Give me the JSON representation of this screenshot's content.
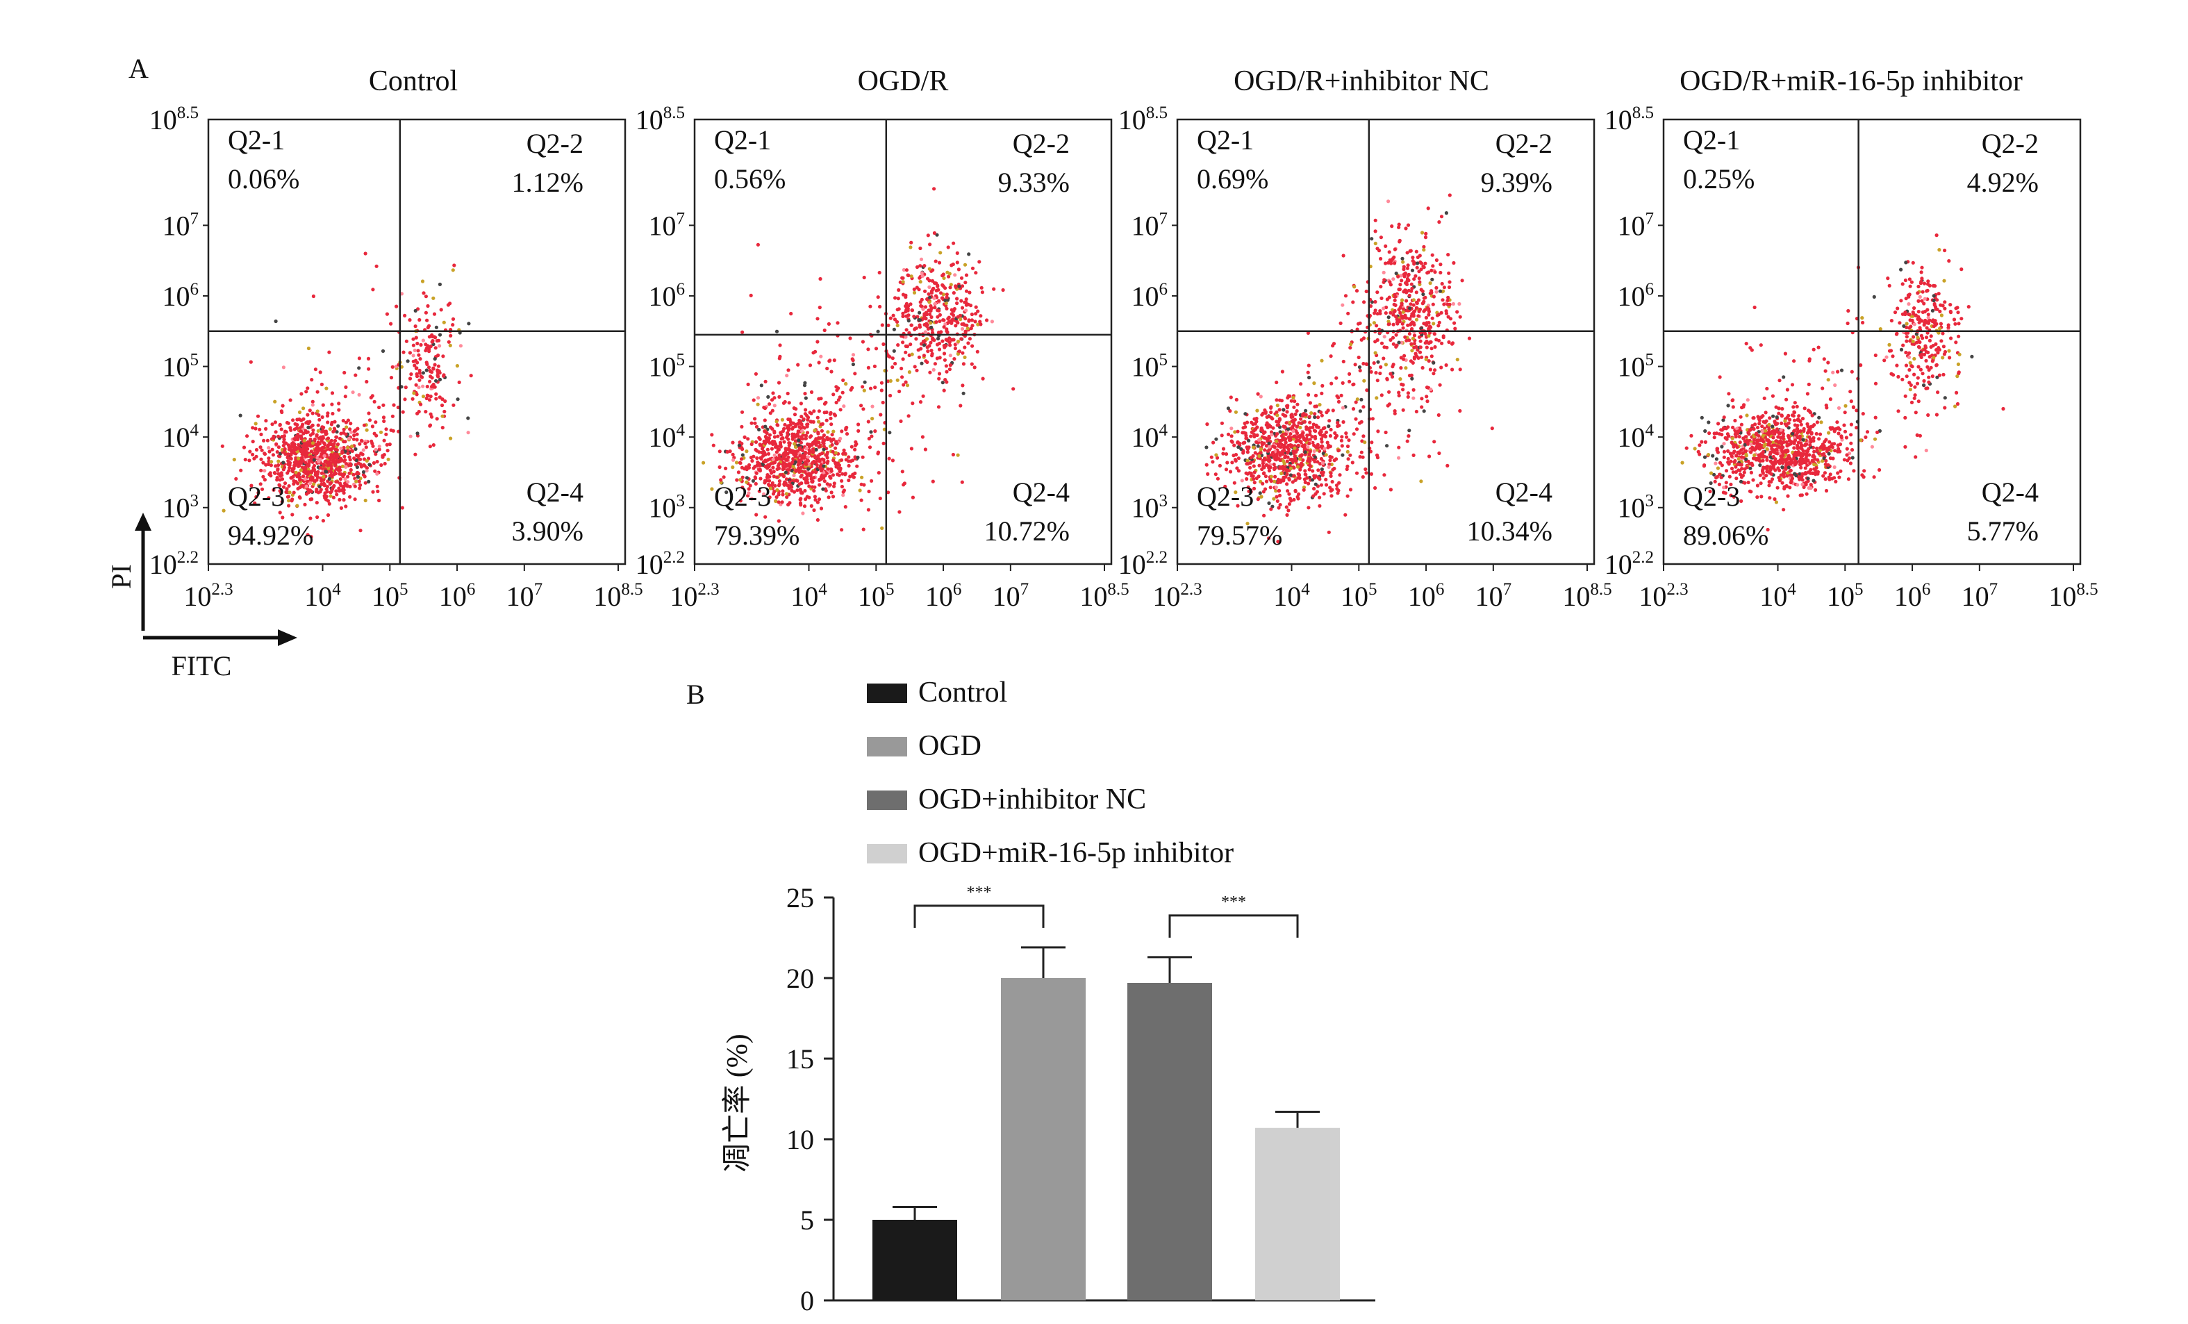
{
  "panel_labels": {
    "a": "A",
    "b": "B"
  },
  "flow": {
    "panels": [
      {
        "title": "Control",
        "q1": "0.06%",
        "q2": "1.12%",
        "q3": "94.92%",
        "q4": "3.90%"
      },
      {
        "title": "OGD/R",
        "q1": "0.56%",
        "q2": "9.33%",
        "q3": "79.39%",
        "q4": "10.72%"
      },
      {
        "title": "OGD/R+inhibitor NC",
        "q1": "0.69%",
        "q2": "9.39%",
        "q3": "79.57%",
        "q4": "10.34%"
      },
      {
        "title": "OGD/R+miR-16-5p inhibitor",
        "q1": "0.25%",
        "q2": "4.92%",
        "q3": "89.06%",
        "q4": "5.77%"
      }
    ],
    "quadrant_names": [
      "Q2-1",
      "Q2-2",
      "Q2-3",
      "Q2-4"
    ],
    "x_axis_label": "FITC",
    "y_axis_label": "PI",
    "x_ticks": [
      {
        "base": "10",
        "exp": "2.3"
      },
      {
        "base": "10",
        "exp": "4"
      },
      {
        "base": "10",
        "exp": "5"
      },
      {
        "base": "10",
        "exp": "6"
      },
      {
        "base": "10",
        "exp": "7"
      },
      {
        "base": "10",
        "exp": "8.5"
      }
    ],
    "y_ticks": [
      {
        "base": "10",
        "exp": "2.2"
      },
      {
        "base": "10",
        "exp": "3"
      },
      {
        "base": "10",
        "exp": "4"
      },
      {
        "base": "10",
        "exp": "5"
      },
      {
        "base": "10",
        "exp": "6"
      },
      {
        "base": "10",
        "exp": "7"
      },
      {
        "base": "10",
        "exp": "8.5"
      }
    ],
    "dot_color": "#e8283c"
  },
  "chart_data": {
    "type": "bar",
    "categories": [
      "Control",
      "OGD",
      "OGD+inhibitor NC",
      "OGD+miR-16-5p inhibitor"
    ],
    "values": [
      5.0,
      20.0,
      19.7,
      10.7
    ],
    "errors": [
      0.8,
      1.9,
      1.6,
      1.0
    ],
    "colors": [
      "#1a1a1a",
      "#999999",
      "#6e6e6e",
      "#d0d0d0"
    ],
    "ylabel": "凋亡率 (%)",
    "ylim": [
      0,
      25
    ],
    "yticks": [
      "0",
      "5",
      "10",
      "15",
      "20",
      "25"
    ],
    "significance": [
      {
        "from": 0,
        "to": 1,
        "label": "***"
      },
      {
        "from": 2,
        "to": 3,
        "label": "***"
      }
    ],
    "legend_position": "top"
  }
}
